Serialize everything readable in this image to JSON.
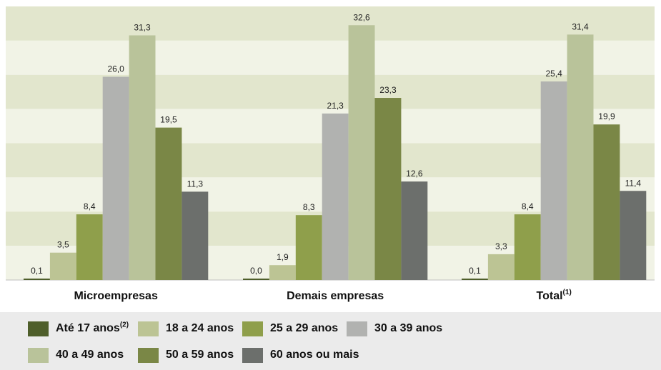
{
  "chart_data": {
    "type": "bar",
    "categories": [
      "Microempresas",
      "Demais empresas",
      "Total"
    ],
    "category_notes": [
      "",
      "",
      "(1)"
    ],
    "series": [
      {
        "name": "Até 17 anos",
        "note": "(2)",
        "color": "#4e5e2a",
        "values": [
          0.1,
          0.0,
          0.1
        ]
      },
      {
        "name": "18 a 24 anos",
        "note": "",
        "color": "#bcc494",
        "values": [
          3.5,
          1.9,
          3.3
        ]
      },
      {
        "name": "25 a 29 anos",
        "note": "",
        "color": "#8f9f4b",
        "values": [
          8.4,
          8.3,
          8.4
        ]
      },
      {
        "name": "30 a 39 anos",
        "note": "",
        "color": "#b1b2b0",
        "values": [
          26.0,
          21.3,
          25.4
        ]
      },
      {
        "name": "40 a 49 anos",
        "note": "",
        "color": "#b9c39a",
        "values": [
          31.3,
          32.6,
          31.4
        ]
      },
      {
        "name": "50 a 59 anos",
        "note": "",
        "color": "#7a8746",
        "values": [
          19.5,
          23.3,
          19.9
        ]
      },
      {
        "name": "60 anos ou mais",
        "note": "",
        "color": "#6c6f6c",
        "values": [
          11.3,
          12.6,
          11.4
        ]
      }
    ],
    "value_labels": [
      [
        "0,1",
        "0,0",
        "0,1"
      ],
      [
        "3,5",
        "1,9",
        "3,3"
      ],
      [
        "8,4",
        "8,3",
        "8,4"
      ],
      [
        "26,0",
        "21,3",
        "25,4"
      ],
      [
        "31,3",
        "32,6",
        "31,4"
      ],
      [
        "19,5",
        "23,3",
        "19,9"
      ],
      [
        "11,3",
        "12,6",
        "11,4"
      ]
    ],
    "ylim": [
      0,
      35
    ],
    "grid": true,
    "legend_position": "bottom",
    "background_bands": [
      "#e2e6cd",
      "#f1f3e6"
    ]
  }
}
